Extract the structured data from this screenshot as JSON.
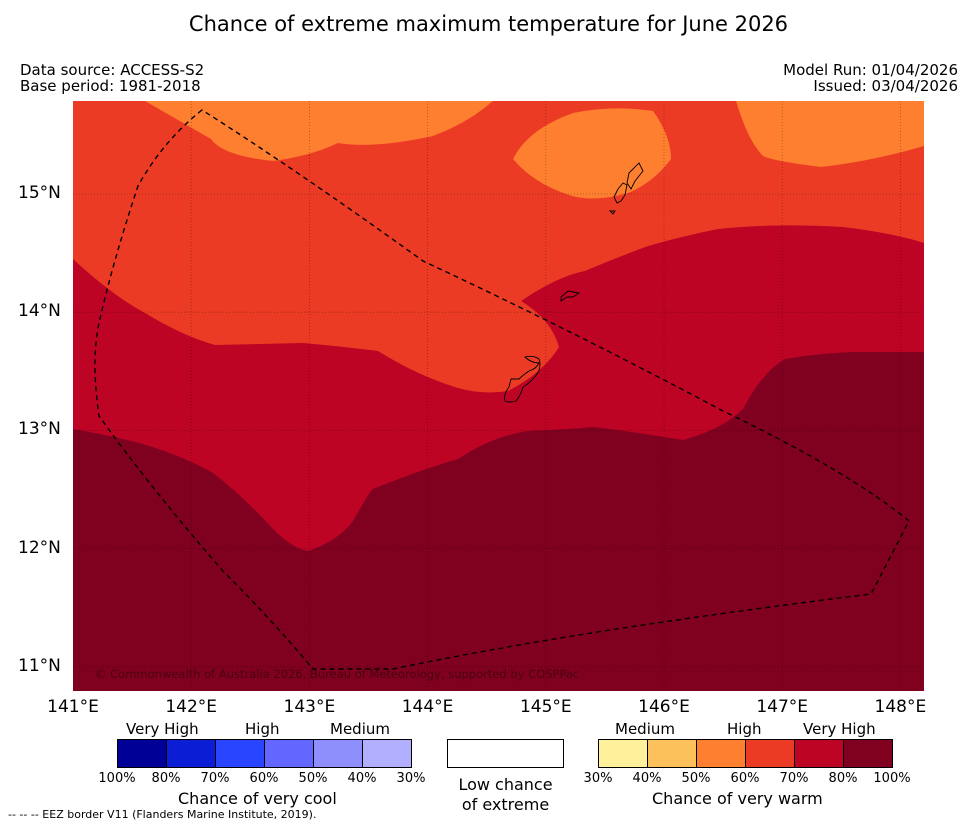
{
  "title": "Chance of extreme maximum temperature for June 2026",
  "meta": {
    "data_source": "Data source: ACCESS-S2",
    "base_period": "Base period: 1981-2018",
    "model_run": "Model Run: 01/04/2026",
    "issued": "Issued: 03/04/2026"
  },
  "map": {
    "lat_labels": [
      "15°N",
      "14°N",
      "13°N",
      "12°N",
      "11°N"
    ],
    "lon_labels": [
      "141°E",
      "142°E",
      "143°E",
      "144°E",
      "145°E",
      "146°E",
      "147°E",
      "148°E"
    ],
    "copyright": "© Commonwealth of Australia 2026, Bureau of Meteorology, supported by COSPPac",
    "colors": {
      "band_50_60": "#fd7f2f",
      "band_60_70": "#ec3b25",
      "band_70_80": "#bd0424",
      "band_80_100": "#800020",
      "gridline": "#000000",
      "eez_border": "#000000"
    }
  },
  "legend": {
    "cool": {
      "category_labels": [
        "Very High",
        "High",
        "Medium"
      ],
      "percent_labels": [
        "100%",
        "80%",
        "70%",
        "60%",
        "50%",
        "40%",
        "30%"
      ],
      "caption": "Chance of very cool",
      "colors": [
        "#000096",
        "#0b1ed6",
        "#2a45ff",
        "#6467ff",
        "#8e8ffd",
        "#b2b0fe"
      ]
    },
    "neutral": {
      "caption_line1": "Low chance",
      "caption_line2": "of extreme",
      "color": "#ffffff"
    },
    "warm": {
      "category_labels": [
        "Medium",
        "High",
        "Very High"
      ],
      "percent_labels": [
        "30%",
        "40%",
        "50%",
        "60%",
        "70%",
        "80%",
        "100%"
      ],
      "caption": "Chance of very warm",
      "colors": [
        "#fff09c",
        "#fdc15c",
        "#fd7f2f",
        "#ec3b25",
        "#bd0424",
        "#800020"
      ]
    }
  },
  "footer": "--  --  -- EEZ border V11 (Flanders Marine Institute, 2019)."
}
